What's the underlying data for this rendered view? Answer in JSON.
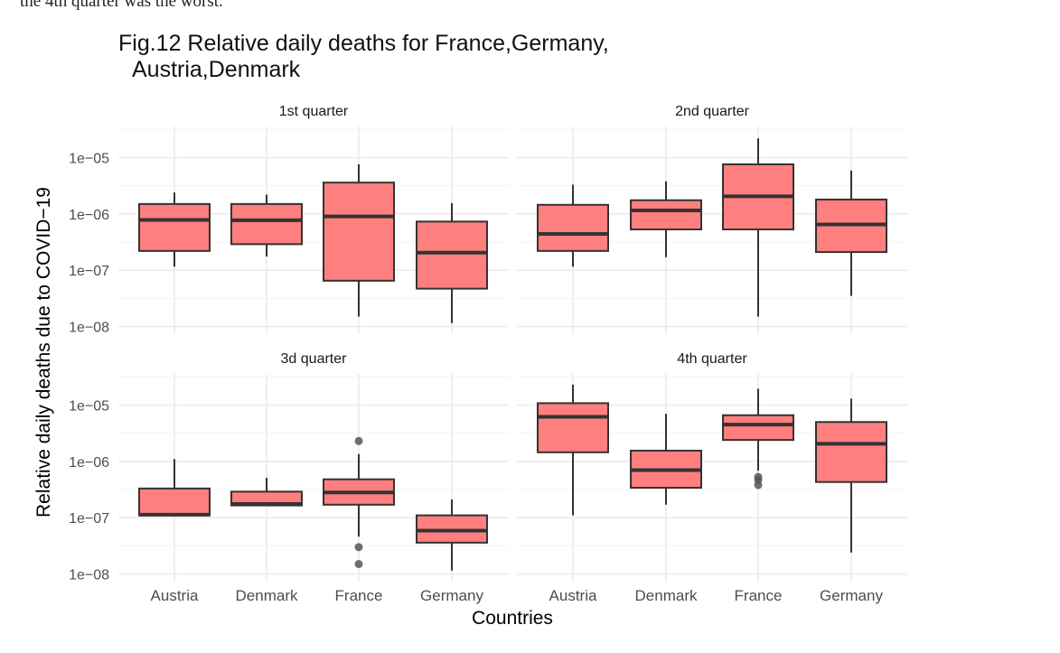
{
  "page": {
    "top_text": "the 4th quarter was the worst.",
    "title_line1": "Fig.12 Relative daily deaths for  France,Germany,",
    "title_line2": "Austria,Denmark"
  },
  "colors": {
    "box_fill": "#FF7F7F",
    "box_stroke": "#333333",
    "outlier": "#555555",
    "grid": "#EBEBEB"
  },
  "chart_data": {
    "type": "boxplot",
    "title": "Fig.12 Relative daily deaths for  France,Germany, Austria,Denmark",
    "xlabel": "Countries",
    "ylabel": "Relative daily deaths  due to COVID−19",
    "y_scale": "log10",
    "ylim": [
      1e-08,
      3e-05
    ],
    "y_ticks": [
      1e-08,
      1e-07,
      1e-06,
      1e-05
    ],
    "y_tick_labels": [
      "1e−08",
      "1e−07",
      "1e−06",
      "1e−05"
    ],
    "categories": [
      "Austria",
      "Denmark",
      "France",
      "Germany"
    ],
    "grid": true,
    "legend": "none",
    "panels": [
      {
        "label": "1st quarter",
        "boxes": [
          {
            "category": "Austria",
            "whisker_low": 1.15e-07,
            "q1": 2.2e-07,
            "median": 7.8e-07,
            "q3": 1.5e-06,
            "whisker_high": 2.4e-06,
            "outliers": []
          },
          {
            "category": "Denmark",
            "whisker_low": 1.75e-07,
            "q1": 2.9e-07,
            "median": 7.7e-07,
            "q3": 1.5e-06,
            "whisker_high": 2.2e-06,
            "outliers": []
          },
          {
            "category": "France",
            "whisker_low": 1.5e-08,
            "q1": 6.5e-08,
            "median": 9e-07,
            "q3": 3.6e-06,
            "whisker_high": 7.6e-06,
            "outliers": []
          },
          {
            "category": "Germany",
            "whisker_low": 1.15e-08,
            "q1": 4.7e-08,
            "median": 2.05e-07,
            "q3": 7.3e-07,
            "whisker_high": 1.55e-06,
            "outliers": []
          }
        ]
      },
      {
        "label": "2nd quarter",
        "boxes": [
          {
            "category": "Austria",
            "whisker_low": 1.15e-07,
            "q1": 2.2e-07,
            "median": 4.4e-07,
            "q3": 1.45e-06,
            "whisker_high": 3.3e-06,
            "outliers": []
          },
          {
            "category": "Denmark",
            "whisker_low": 1.7e-07,
            "q1": 5.3e-07,
            "median": 1.15e-06,
            "q3": 1.75e-06,
            "whisker_high": 3.8e-06,
            "outliers": []
          },
          {
            "category": "France",
            "whisker_low": 1.5e-08,
            "q1": 5.3e-07,
            "median": 2.05e-06,
            "q3": 7.6e-06,
            "whisker_high": 2.2e-05,
            "outliers": []
          },
          {
            "category": "Germany",
            "whisker_low": 3.5e-08,
            "q1": 2.1e-07,
            "median": 6.5e-07,
            "q3": 1.8e-06,
            "whisker_high": 5.9e-06,
            "outliers": []
          }
        ]
      },
      {
        "label": "3d quarter",
        "boxes": [
          {
            "category": "Austria",
            "whisker_low": 1.1e-07,
            "q1": 1.1e-07,
            "median": 1.13e-07,
            "q3": 3.3e-07,
            "whisker_high": 1.1e-06,
            "outliers": []
          },
          {
            "category": "Denmark",
            "whisker_low": 1.65e-07,
            "q1": 1.65e-07,
            "median": 1.75e-07,
            "q3": 2.9e-07,
            "whisker_high": 5.1e-07,
            "outliers": []
          },
          {
            "category": "France",
            "whisker_low": 4.6e-08,
            "q1": 1.7e-07,
            "median": 2.8e-07,
            "q3": 4.8e-07,
            "whisker_high": 1.35e-06,
            "outliers": [
              2.3e-06,
              3e-08,
              1.5e-08
            ]
          },
          {
            "category": "Germany",
            "whisker_low": 1.15e-08,
            "q1": 3.6e-08,
            "median": 5.9e-08,
            "q3": 1.1e-07,
            "whisker_high": 2.1e-07,
            "outliers": []
          }
        ]
      },
      {
        "label": "4th quarter",
        "boxes": [
          {
            "category": "Austria",
            "whisker_low": 1.1e-07,
            "q1": 1.45e-06,
            "median": 6.2e-06,
            "q3": 1.08e-05,
            "whisker_high": 2.3e-05,
            "outliers": []
          },
          {
            "category": "Denmark",
            "whisker_low": 1.7e-07,
            "q1": 3.4e-07,
            "median": 7e-07,
            "q3": 1.55e-06,
            "whisker_high": 7e-06,
            "outliers": []
          },
          {
            "category": "France",
            "whisker_low": 6.8e-07,
            "q1": 2.4e-06,
            "median": 4.5e-06,
            "q3": 6.6e-06,
            "whisker_high": 1.95e-05,
            "outliers": [
              5.3e-07,
              4.7e-07,
              3.8e-07
            ]
          },
          {
            "category": "Germany",
            "whisker_low": 2.4e-08,
            "q1": 4.3e-07,
            "median": 2.05e-06,
            "q3": 5e-06,
            "whisker_high": 1.3e-05,
            "outliers": []
          }
        ]
      }
    ]
  }
}
